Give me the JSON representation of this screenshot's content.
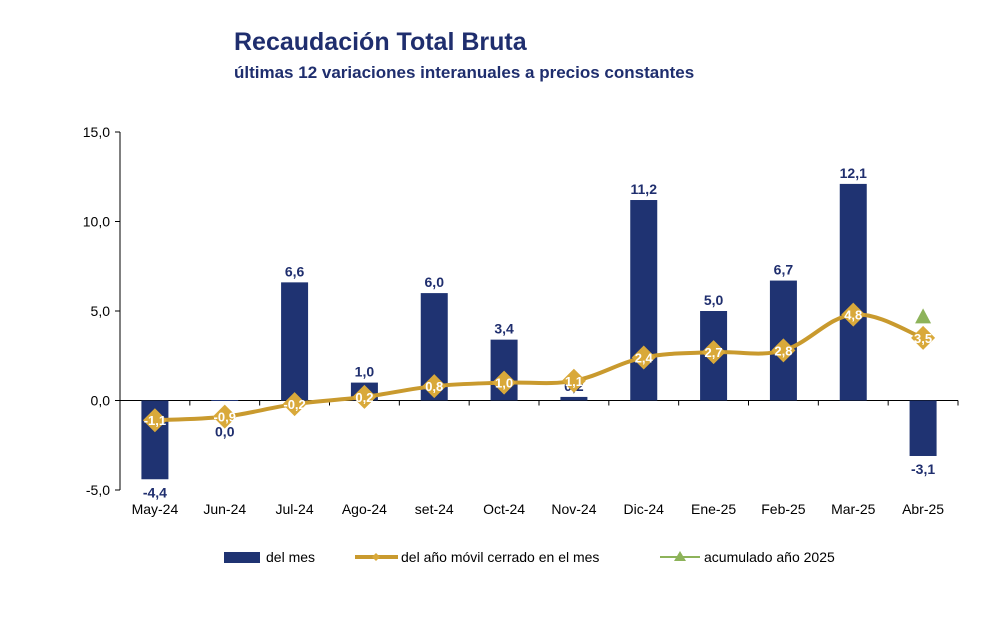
{
  "chart_data": {
    "type": "bar",
    "title": "Recaudación Total Bruta",
    "subtitle": "últimas 12 variaciones interanuales a precios constantes",
    "categories": [
      "May-24",
      "Jun-24",
      "Jul-24",
      "Ago-24",
      "set-24",
      "Oct-24",
      "Nov-24",
      "Dic-24",
      "Ene-25",
      "Feb-25",
      "Mar-25",
      "Abr-25"
    ],
    "ylim": [
      -5,
      15
    ],
    "yticks": [
      -5,
      0,
      5,
      10,
      15
    ],
    "ytick_labels": [
      "-5,0",
      "0,0",
      "5,0",
      "10,0",
      "15,0"
    ],
    "grid": false,
    "legend_position": "bottom",
    "series": [
      {
        "name": "del mes",
        "kind": "bar",
        "color": "#1f3372",
        "values": [
          -4.4,
          0.0,
          6.6,
          1.0,
          6.0,
          3.4,
          0.2,
          11.2,
          5.0,
          6.7,
          12.1,
          -3.1
        ],
        "labels": [
          "-4,4",
          "0,0",
          "6,6",
          "1,0",
          "6,0",
          "3,4",
          "0,2",
          "11,2",
          "5,0",
          "6,7",
          "12,1",
          "-3,1"
        ]
      },
      {
        "name": "del año móvil cerrado en el mes",
        "kind": "line",
        "color": "#c99a2e",
        "marker_color": "#d9a93a",
        "values": [
          -1.1,
          -0.9,
          -0.2,
          0.2,
          0.8,
          1.0,
          1.1,
          2.4,
          2.7,
          2.8,
          4.8,
          3.5
        ],
        "labels": [
          "-1,1",
          "-0,9",
          "-0,2",
          "0,2",
          "0,8",
          "1,0",
          "1,1",
          "2,4",
          "2,7",
          "2,8",
          "4,8",
          "3,5"
        ]
      },
      {
        "name": "acumulado año 2025",
        "kind": "marker",
        "color": "#8db35a",
        "points": [
          {
            "category": "Abr-25",
            "value": 4.7
          }
        ]
      }
    ]
  }
}
